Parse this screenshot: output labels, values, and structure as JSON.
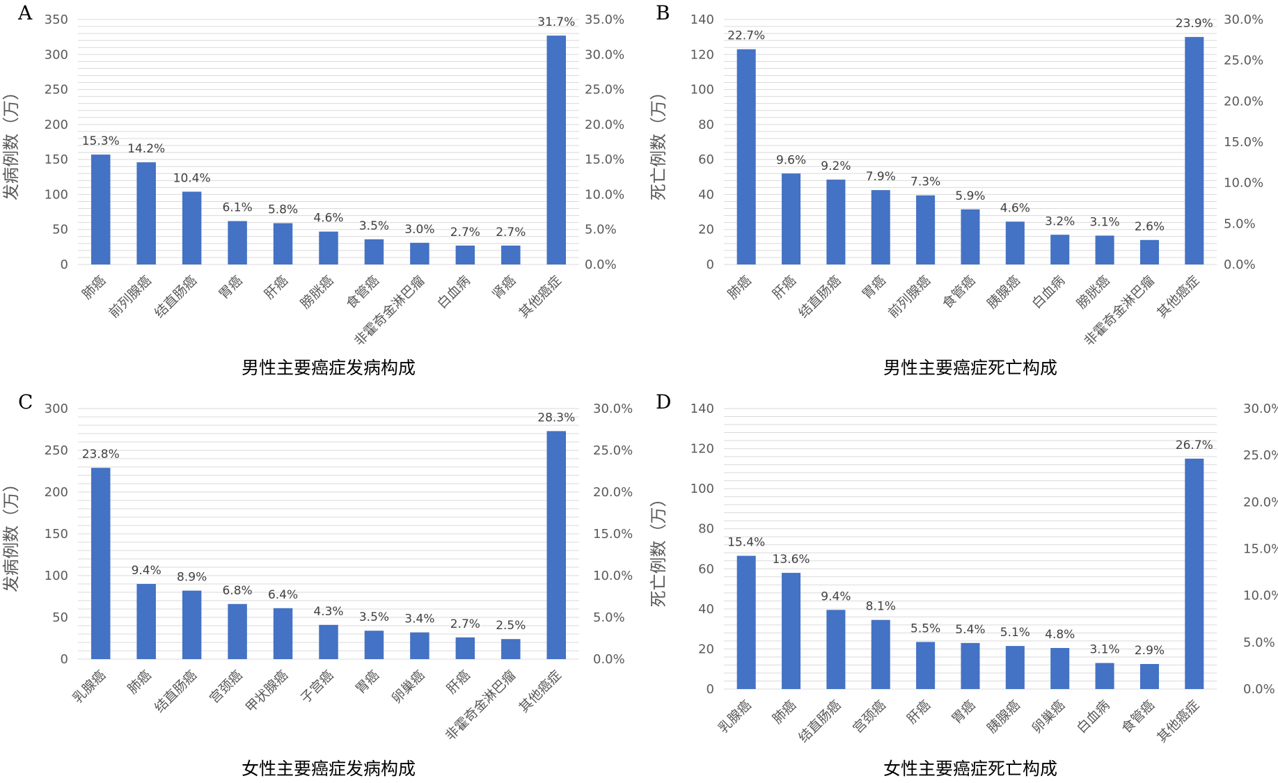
{
  "chart_data": [
    {
      "type": "bar",
      "panel_letter": "A",
      "title": "男性主要癌症发病构成",
      "ylabel": "发病例数（万）",
      "ylim": [
        0,
        350
      ],
      "yticks": [
        0,
        50,
        100,
        150,
        200,
        250,
        300,
        350
      ],
      "y2lim": [
        0,
        35
      ],
      "y2ticks": [
        "0.0%",
        "5.0%",
        "10.0%",
        "15.0%",
        "20.0%",
        "25.0%",
        "30.0%",
        "35.0%"
      ],
      "grid": true,
      "categories": [
        "肺癌",
        "前列腺癌",
        "结直肠癌",
        "胃癌",
        "肝癌",
        "膀胱癌",
        "食管癌",
        "非霍奇金淋巴瘤",
        "白血病",
        "肾癌",
        "其他癌症"
      ],
      "values": [
        157,
        146,
        104,
        62,
        59,
        47,
        36,
        31,
        27,
        27,
        327
      ],
      "labels": [
        "15.3%",
        "14.2%",
        "10.4%",
        "6.1%",
        "5.8%",
        "4.6%",
        "3.5%",
        "3.0%",
        "2.7%",
        "2.7%",
        "31.7%"
      ]
    },
    {
      "type": "bar",
      "panel_letter": "B",
      "title": "男性主要癌症死亡构成",
      "ylabel": "死亡例数（万）",
      "ylim": [
        0,
        140
      ],
      "yticks": [
        0,
        20,
        40,
        60,
        80,
        100,
        120,
        140
      ],
      "y2lim": [
        0,
        30
      ],
      "y2ticks": [
        "0.0%",
        "5.0%",
        "10.0%",
        "15.0%",
        "20.0%",
        "25.0%",
        "30.0%"
      ],
      "grid": true,
      "categories": [
        "肺癌",
        "肝癌",
        "结直肠癌",
        "胃癌",
        "前列腺癌",
        "食管癌",
        "胰腺癌",
        "白血病",
        "膀胱癌",
        "非霍奇金淋巴瘤",
        "其他癌症"
      ],
      "values": [
        123,
        52,
        48.5,
        42.5,
        39.5,
        31.5,
        24.5,
        17,
        16.5,
        14,
        130
      ],
      "labels": [
        "22.7%",
        "9.6%",
        "9.2%",
        "7.9%",
        "7.3%",
        "5.9%",
        "4.6%",
        "3.2%",
        "3.1%",
        "2.6%",
        "23.9%"
      ]
    },
    {
      "type": "bar",
      "panel_letter": "C",
      "title": "女性主要癌症发病构成",
      "ylabel": "发病例数（万）",
      "ylim": [
        0,
        300
      ],
      "yticks": [
        0,
        50,
        100,
        150,
        200,
        250,
        300
      ],
      "y2lim": [
        0,
        30
      ],
      "y2ticks": [
        "0.0%",
        "5.0%",
        "10.0%",
        "15.0%",
        "20.0%",
        "25.0%",
        "30.0%"
      ],
      "grid": true,
      "categories": [
        "乳腺癌",
        "肺癌",
        "结直肠癌",
        "宫颈癌",
        "甲状腺癌",
        "子宫癌",
        "胃癌",
        "卵巢癌",
        "肝癌",
        "非霍奇金淋巴瘤",
        "其他癌症"
      ],
      "values": [
        229,
        90,
        82,
        66,
        61,
        41,
        34,
        32,
        26,
        24,
        273
      ],
      "labels": [
        "23.8%",
        "9.4%",
        "8.9%",
        "6.8%",
        "6.4%",
        "4.3%",
        "3.5%",
        "3.4%",
        "2.7%",
        "2.5%",
        "28.3%"
      ]
    },
    {
      "type": "bar",
      "panel_letter": "D",
      "title": "女性主要癌症死亡构成",
      "ylabel": "死亡例数（万）",
      "ylim": [
        0,
        140
      ],
      "yticks": [
        0,
        20,
        40,
        60,
        80,
        100,
        120,
        140
      ],
      "y2lim": [
        0,
        30
      ],
      "y2ticks": [
        "0.0%",
        "5.0%",
        "10.0%",
        "15.0%",
        "20.0%",
        "25.0%",
        "30.0%"
      ],
      "grid": true,
      "categories": [
        "乳腺癌",
        "肺癌",
        "结直肠癌",
        "宫颈癌",
        "肝癌",
        "胃癌",
        "胰腺癌",
        "卵巢癌",
        "白血病",
        "食管癌",
        "其他癌症"
      ],
      "values": [
        66.5,
        58,
        39.5,
        34.5,
        23.5,
        23,
        21.5,
        20.5,
        13,
        12.5,
        115
      ],
      "labels": [
        "15.4%",
        "13.6%",
        "9.4%",
        "8.1%",
        "5.5%",
        "5.4%",
        "5.1%",
        "4.8%",
        "3.1%",
        "2.9%",
        "26.7%"
      ]
    }
  ]
}
